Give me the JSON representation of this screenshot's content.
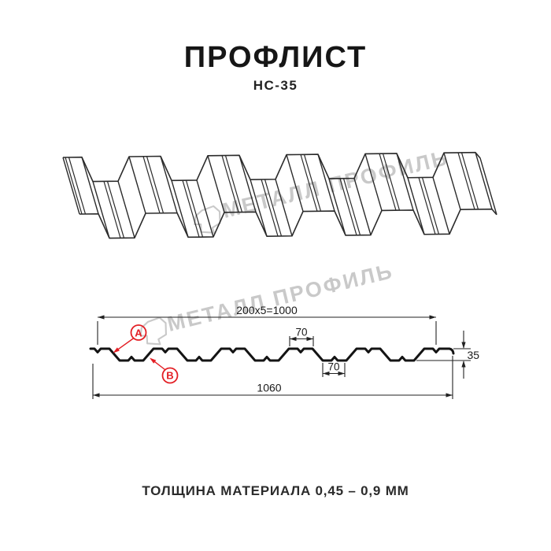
{
  "page": {
    "title": "ПРОФЛИСТ",
    "subtitle": "НС-35",
    "footer": "ТОЛЩИНА МАТЕРИАЛА 0,45 – 0,9 ММ"
  },
  "watermark": {
    "text": "МЕТАЛЛ ПРОФИЛЬ"
  },
  "cross_section": {
    "dim_coverage": "200x5=1000",
    "dim_crest_width": "70",
    "dim_trough_width": "70",
    "dim_height": "35",
    "dim_total_width": "1060",
    "label_a": "A",
    "label_b": "B"
  },
  "colors": {
    "accent_red": "#e31e24",
    "profile_line": "#141414",
    "sketch_line": "#2b2b2b",
    "dim_line": "#222222",
    "watermark": "#c9c9c9"
  }
}
